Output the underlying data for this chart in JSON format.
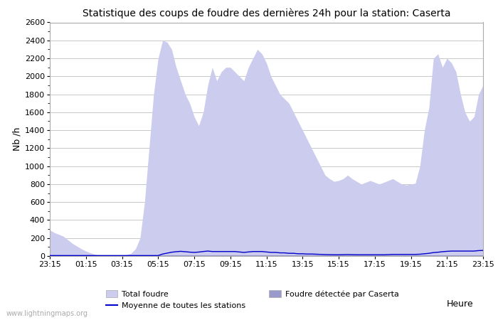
{
  "title": "Statistique des coups de foudre des dernières 24h pour la station: Caserta",
  "xlabel": "Heure",
  "ylabel": "Nb /h",
  "ylim": [
    0,
    2600
  ],
  "yticks": [
    0,
    200,
    400,
    600,
    800,
    1000,
    1200,
    1400,
    1600,
    1800,
    2000,
    2200,
    2400,
    2600
  ],
  "xtick_labels": [
    "23:15",
    "01:15",
    "03:15",
    "05:15",
    "07:15",
    "09:15",
    "11:15",
    "13:15",
    "15:15",
    "17:15",
    "19:15",
    "21:15",
    "23:15"
  ],
  "bg_color": "#ffffff",
  "plot_bg_color": "#ffffff",
  "grid_color": "#c8c8c8",
  "total_foudre_color": "#ccccee",
  "caserta_color": "#9999cc",
  "moyenne_color": "#0000cc",
  "watermark": "www.lightningmaps.org",
  "legend_total": "Total foudre",
  "legend_caserta": "Foudre détectée par Caserta",
  "legend_moyenne": "Moyenne de toutes les stations",
  "total_foudre_values": [
    290,
    260,
    240,
    220,
    180,
    140,
    110,
    80,
    55,
    35,
    18,
    8,
    3,
    2,
    3,
    5,
    8,
    15,
    30,
    80,
    200,
    600,
    1200,
    1800,
    2200,
    2400,
    2380,
    2300,
    2100,
    1950,
    1800,
    1700,
    1550,
    1450,
    1600,
    1900,
    2100,
    1950,
    2050,
    2100,
    2100,
    2050,
    2000,
    1950,
    2100,
    2200,
    2300,
    2250,
    2150,
    2000,
    1900,
    1800,
    1750,
    1700,
    1600,
    1500,
    1400,
    1300,
    1200,
    1100,
    1000,
    900,
    860,
    830,
    840,
    860,
    900,
    860,
    830,
    800,
    820,
    840,
    820,
    800,
    820,
    840,
    860,
    830,
    800,
    790,
    800,
    810,
    1000,
    1400,
    1650,
    2200,
    2250,
    2100,
    2200,
    2150,
    2050,
    1800,
    1600,
    1500,
    1550,
    1800,
    1900
  ],
  "caserta_values": [
    5,
    5,
    5,
    5,
    5,
    5,
    5,
    5,
    5,
    5,
    5,
    5,
    5,
    5,
    5,
    5,
    5,
    5,
    5,
    5,
    5,
    5,
    5,
    5,
    5,
    5,
    5,
    5,
    5,
    5,
    5,
    5,
    5,
    5,
    5,
    5,
    5,
    5,
    5,
    5,
    5,
    5,
    5,
    5,
    5,
    5,
    5,
    5,
    5,
    5,
    5,
    5,
    5,
    5,
    5,
    5,
    5,
    5,
    5,
    5,
    5,
    5,
    5,
    5,
    5,
    5,
    5,
    5,
    5,
    5,
    5,
    5,
    5,
    5,
    5,
    5,
    5,
    5,
    5,
    5,
    5,
    5,
    5,
    5,
    5,
    5,
    5,
    5,
    5,
    5,
    5,
    5,
    5,
    5,
    5,
    5,
    5
  ],
  "moyenne_values": [
    5,
    5,
    5,
    5,
    5,
    5,
    5,
    5,
    5,
    5,
    5,
    5,
    5,
    5,
    5,
    5,
    5,
    5,
    5,
    5,
    5,
    5,
    5,
    5,
    5,
    22,
    32,
    42,
    48,
    52,
    48,
    43,
    40,
    44,
    50,
    55,
    50,
    50,
    50,
    50,
    50,
    50,
    45,
    40,
    45,
    50,
    50,
    50,
    45,
    40,
    40,
    35,
    35,
    30,
    30,
    25,
    25,
    22,
    22,
    20,
    18,
    16,
    15,
    14,
    14,
    15,
    16,
    15,
    14,
    14,
    14,
    14,
    14,
    14,
    14,
    16,
    18,
    18,
    18,
    18,
    18,
    18,
    20,
    25,
    30,
    38,
    42,
    48,
    52,
    55,
    55,
    55,
    55,
    55,
    55,
    60,
    62
  ]
}
